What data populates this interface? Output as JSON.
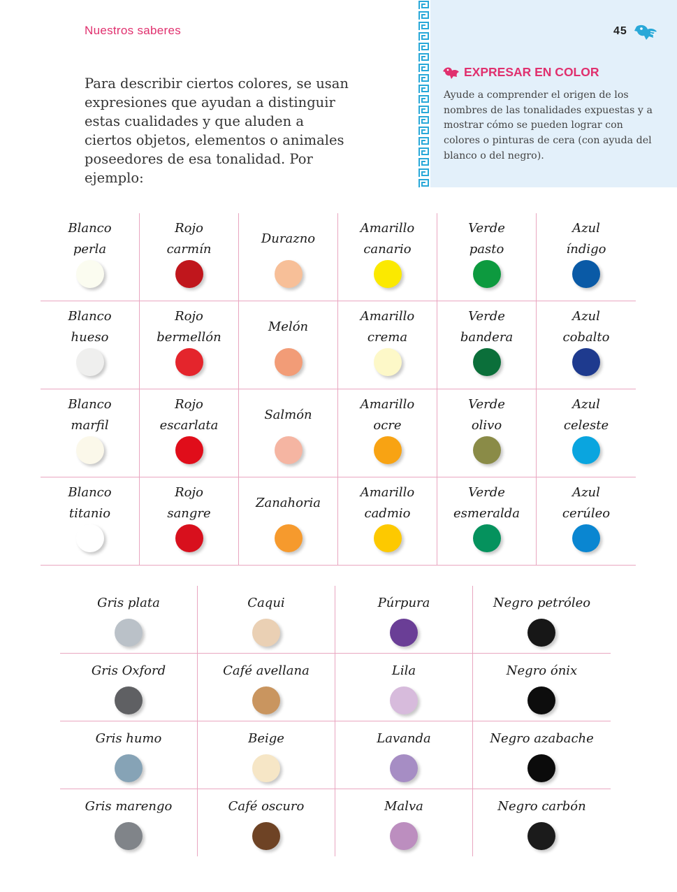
{
  "header": {
    "section": "Nuestros saberes",
    "page_number": "45"
  },
  "intro": "Para describir ciertos colores, se usan expresiones que ayudan a distinguir estas cualidades y que aluden a ciertos objetos, elementos o animales poseedores de esa tonalidad. Por ejemplo:",
  "sidebar": {
    "title": "EXPRESAR EN COLOR",
    "text": "Ayude a comprender el origen de los nombres de las tonalidades expuestas y a mostrar cómo se pueden lograr con colores o pinturas de cera (con ayuda del blanco o del negro).",
    "accent": "#e0306e",
    "background": "#e3f0fa",
    "meander_color": "#29a8d8"
  },
  "table1": [
    [
      {
        "name": "Blanco\nperla",
        "color": "#fbfcf0"
      },
      {
        "name": "Rojo\ncarmín",
        "color": "#c0161c"
      },
      {
        "name": "Durazno",
        "color": "#f7bf98"
      },
      {
        "name": "Amarillo\ncanario",
        "color": "#fbe900"
      },
      {
        "name": "Verde\npasto",
        "color": "#0d9a3f"
      },
      {
        "name": "Azul\níndigo",
        "color": "#0a5aa6"
      }
    ],
    [
      {
        "name": "Blanco\nhueso",
        "color": "#efefee"
      },
      {
        "name": "Rojo\nbermellón",
        "color": "#e4252c"
      },
      {
        "name": "Melón",
        "color": "#f29c77"
      },
      {
        "name": "Amarillo\ncrema",
        "color": "#fdf8c8"
      },
      {
        "name": "Verde\nbandera",
        "color": "#0b6f3a"
      },
      {
        "name": "Azul\ncobalto",
        "color": "#1e3a8e"
      }
    ],
    [
      {
        "name": "Blanco\nmarfil",
        "color": "#fbf8ea"
      },
      {
        "name": "Rojo\nescarlata",
        "color": "#e00d1a"
      },
      {
        "name": "Salmón",
        "color": "#f5b5a2"
      },
      {
        "name": "Amarillo\nocre",
        "color": "#f8a313"
      },
      {
        "name": "Verde\nolivo",
        "color": "#8a8b47"
      },
      {
        "name": "Azul\nceleste",
        "color": "#0aa5df"
      }
    ],
    [
      {
        "name": "Blanco\ntitanio",
        "color": "#ffffff"
      },
      {
        "name": "Rojo\nsangre",
        "color": "#d8101d"
      },
      {
        "name": "Zanahoria",
        "color": "#f69a2d"
      },
      {
        "name": "Amarillo\ncadmio",
        "color": "#fdc900"
      },
      {
        "name": "Verde\nesmeralda",
        "color": "#05925d"
      },
      {
        "name": "Azul\ncerúleo",
        "color": "#0a86d1"
      }
    ]
  ],
  "table2": [
    [
      {
        "name": "Gris plata",
        "color": "#bac1c8"
      },
      {
        "name": "Caqui",
        "color": "#ead0b4"
      },
      {
        "name": "Púrpura",
        "color": "#6a3e96"
      },
      {
        "name": "Negro petróleo",
        "color": "#171717"
      }
    ],
    [
      {
        "name": "Gris Oxford",
        "color": "#5f6063"
      },
      {
        "name": "Café avellana",
        "color": "#c9955f"
      },
      {
        "name": "Lila",
        "color": "#d7bbdc"
      },
      {
        "name": "Negro ónix",
        "color": "#0d0d0d"
      }
    ],
    [
      {
        "name": "Gris humo",
        "color": "#86a3b6"
      },
      {
        "name": "Beige",
        "color": "#f6e6c6"
      },
      {
        "name": "Lavanda",
        "color": "#a68dc4"
      },
      {
        "name": "Negro azabache",
        "color": "#0b0b0b"
      }
    ],
    [
      {
        "name": "Gris marengo",
        "color": "#808489"
      },
      {
        "name": "Café oscuro",
        "color": "#6e4325"
      },
      {
        "name": "Malva",
        "color": "#bc8ebf"
      },
      {
        "name": "Negro carbón",
        "color": "#1b1b1b"
      }
    ]
  ]
}
